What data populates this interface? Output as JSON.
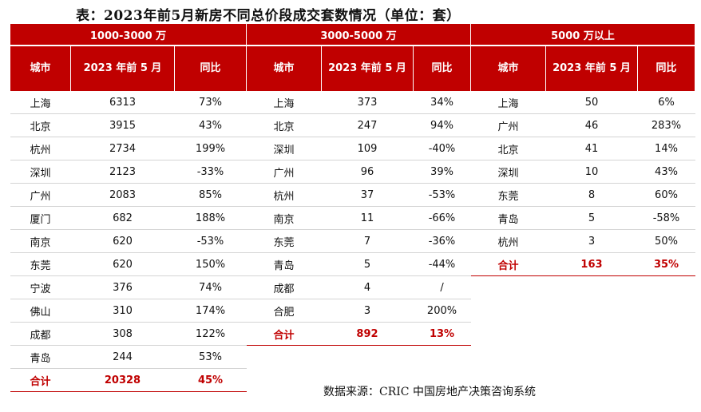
{
  "title": "表：2023年前5月新房不同总价段成交套数情况（单位：套）",
  "source": "数据来源：CRIC 中国房地产决策咨询系统",
  "headers": {
    "city": "城市",
    "period": "2023 年前 5 月",
    "yoy": "同比"
  },
  "groups": [
    {
      "label": "1000-3000 万",
      "rows": [
        {
          "city": "上海",
          "value": "6313",
          "yoy": "73%"
        },
        {
          "city": "北京",
          "value": "3915",
          "yoy": "43%"
        },
        {
          "city": "杭州",
          "value": "2734",
          "yoy": "199%"
        },
        {
          "city": "深圳",
          "value": "2123",
          "yoy": "-33%"
        },
        {
          "city": "广州",
          "value": "2083",
          "yoy": "85%"
        },
        {
          "city": "厦门",
          "value": "682",
          "yoy": "188%"
        },
        {
          "city": "南京",
          "value": "620",
          "yoy": "-53%"
        },
        {
          "city": "东莞",
          "value": "620",
          "yoy": "150%"
        },
        {
          "city": "宁波",
          "value": "376",
          "yoy": "74%"
        },
        {
          "city": "佛山",
          "value": "310",
          "yoy": "174%"
        },
        {
          "city": "成都",
          "value": "308",
          "yoy": "122%"
        },
        {
          "city": "青岛",
          "value": "244",
          "yoy": "53%"
        }
      ],
      "total": {
        "city": "合计",
        "value": "20328",
        "yoy": "45%"
      }
    },
    {
      "label": "3000-5000 万",
      "rows": [
        {
          "city": "上海",
          "value": "373",
          "yoy": "34%"
        },
        {
          "city": "北京",
          "value": "247",
          "yoy": "94%"
        },
        {
          "city": "深圳",
          "value": "109",
          "yoy": "-40%"
        },
        {
          "city": "广州",
          "value": "96",
          "yoy": "39%"
        },
        {
          "city": "杭州",
          "value": "37",
          "yoy": "-53%"
        },
        {
          "city": "南京",
          "value": "11",
          "yoy": "-66%"
        },
        {
          "city": "东莞",
          "value": "7",
          "yoy": "-36%"
        },
        {
          "city": "青岛",
          "value": "5",
          "yoy": "-44%"
        },
        {
          "city": "成都",
          "value": "4",
          "yoy": "/"
        },
        {
          "city": "合肥",
          "value": "3",
          "yoy": "200%"
        }
      ],
      "total": {
        "city": "合计",
        "value": "892",
        "yoy": "13%"
      }
    },
    {
      "label": "5000 万以上",
      "rows": [
        {
          "city": "上海",
          "value": "50",
          "yoy": "6%"
        },
        {
          "city": "广州",
          "value": "46",
          "yoy": "283%"
        },
        {
          "city": "北京",
          "value": "41",
          "yoy": "14%"
        },
        {
          "city": "深圳",
          "value": "10",
          "yoy": "43%"
        },
        {
          "city": "东莞",
          "value": "8",
          "yoy": "60%"
        },
        {
          "city": "青岛",
          "value": "5",
          "yoy": "-58%"
        },
        {
          "city": "杭州",
          "value": "3",
          "yoy": "50%"
        }
      ],
      "total": {
        "city": "合计",
        "value": "163",
        "yoy": "35%"
      }
    }
  ],
  "colors": {
    "header_bg": "#c00000",
    "header_text": "#ffffff",
    "total_text": "#c00000"
  }
}
